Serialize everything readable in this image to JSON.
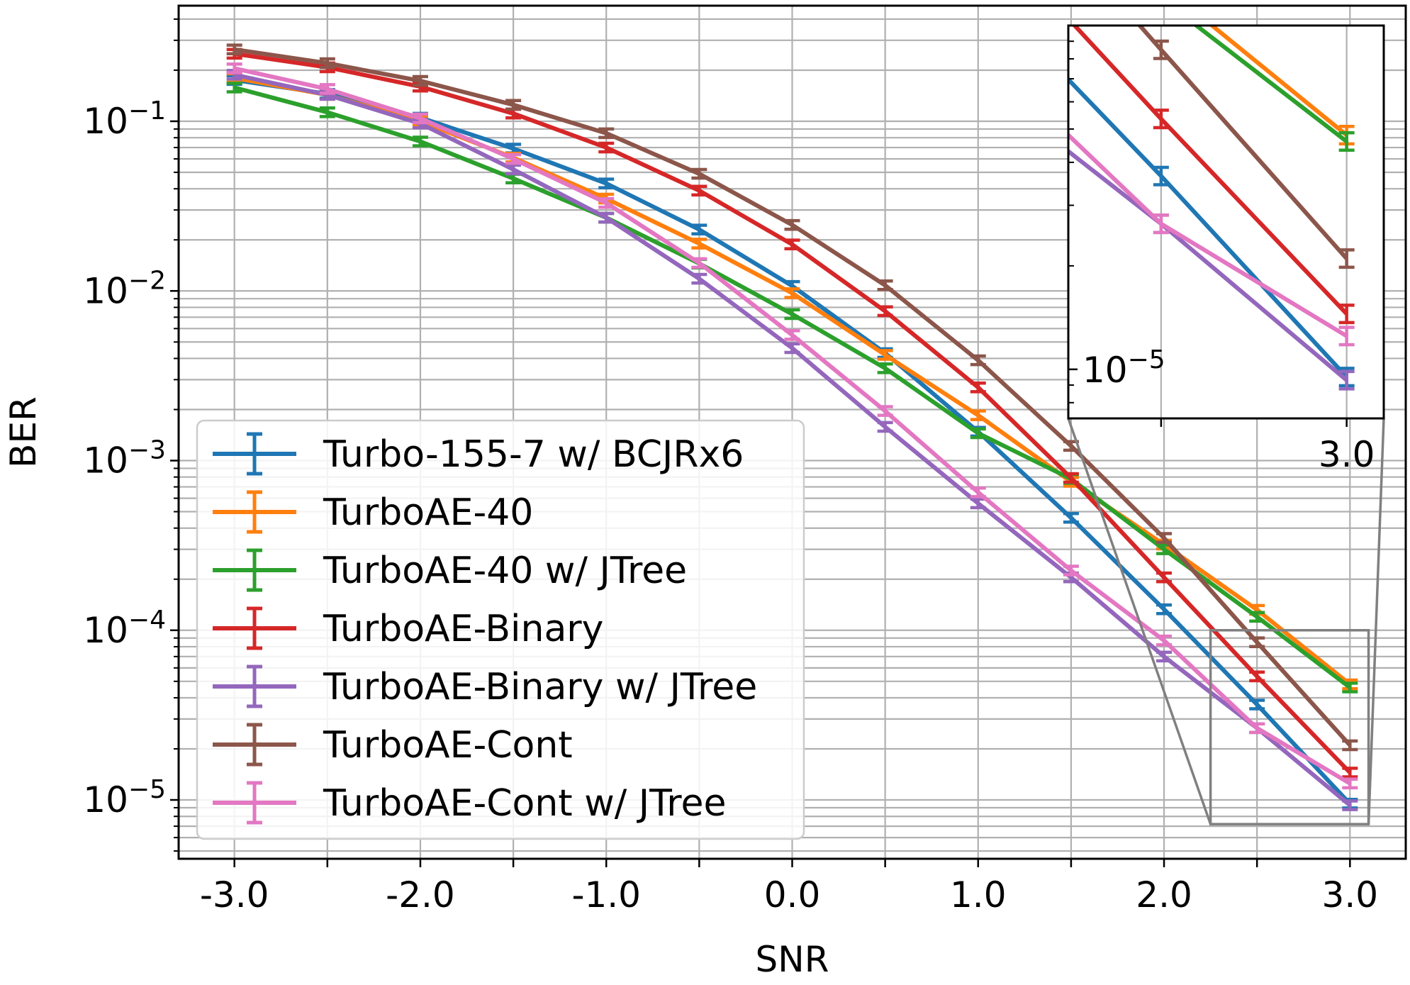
{
  "chart_data": {
    "type": "line",
    "xlabel": "SNR",
    "ylabel": "BER",
    "yscale": "log",
    "xlim": [
      -3.3,
      3.3
    ],
    "ylim": [
      4.5e-06,
      0.48
    ],
    "grid": true,
    "legend_position": "lower-left",
    "x_ticks": [
      "-3.0",
      "-2.0",
      "-1.0",
      "0.0",
      "1.0",
      "2.0",
      "3.0"
    ],
    "y_ticks": [
      {
        "value": 0.1,
        "base": "10",
        "exp": "−1"
      },
      {
        "value": 0.01,
        "base": "10",
        "exp": "−2"
      },
      {
        "value": 0.001,
        "base": "10",
        "exp": "−3"
      },
      {
        "value": 0.0001,
        "base": "10",
        "exp": "−4"
      },
      {
        "value": 1e-05,
        "base": "10",
        "exp": "−5"
      }
    ],
    "x": [
      -3.0,
      -2.5,
      -2.0,
      -1.5,
      -1.0,
      -0.5,
      0.0,
      0.5,
      1.0,
      1.5,
      2.0,
      2.5,
      3.0
    ],
    "series": [
      {
        "name": "Turbo-155-7 w/ BCJRx6",
        "color": "#1f77b4",
        "values": [
          0.175,
          0.145,
          0.105,
          0.069,
          0.043,
          0.023,
          0.0107,
          0.0043,
          0.00148,
          0.00046,
          0.000133,
          3.65e-05,
          9.5e-06
        ]
      },
      {
        "name": "TurboAE-40",
        "color": "#ff7f0e",
        "values": [
          0.18,
          0.143,
          0.1,
          0.061,
          0.035,
          0.019,
          0.0097,
          0.0042,
          0.00185,
          0.00075,
          0.00032,
          0.000132,
          4.8e-05
        ]
      },
      {
        "name": "TurboAE-40 w/ JTree",
        "color": "#2ca02c",
        "values": [
          0.158,
          0.113,
          0.076,
          0.046,
          0.027,
          0.0145,
          0.0073,
          0.0035,
          0.00145,
          0.00078,
          0.0003,
          0.00012,
          4.6e-05
        ]
      },
      {
        "name": "TurboAE-Binary",
        "color": "#d62728",
        "values": [
          0.25,
          0.208,
          0.16,
          0.111,
          0.07,
          0.039,
          0.0188,
          0.0076,
          0.0027,
          0.00079,
          0.000205,
          5.35e-05,
          1.45e-05
        ]
      },
      {
        "name": "TurboAE-Binary w/ JTree",
        "color": "#9467bd",
        "values": [
          0.188,
          0.143,
          0.097,
          0.052,
          0.027,
          0.0118,
          0.0046,
          0.00158,
          0.00056,
          0.000205,
          7e-05,
          2.65e-05,
          9.3e-06
        ]
      },
      {
        "name": "TurboAE-Cont",
        "color": "#8c564b",
        "values": [
          0.265,
          0.22,
          0.173,
          0.125,
          0.085,
          0.049,
          0.0245,
          0.0108,
          0.0039,
          0.00122,
          0.00035,
          8.5e-05,
          2.1e-05
        ]
      },
      {
        "name": "TurboAE-Cont w/ JTree",
        "color": "#e377c2",
        "values": [
          0.205,
          0.155,
          0.104,
          0.06,
          0.033,
          0.0146,
          0.0055,
          0.00196,
          0.00065,
          0.000225,
          8.7e-05,
          2.65e-05,
          1.25e-05
        ]
      }
    ],
    "inset": {
      "xlim": [
        2.25,
        3.1
      ],
      "ylim": [
        7.2e-06,
        0.0001
      ],
      "x_ticks": [
        "3.0"
      ],
      "y_ticks": [
        {
          "value": 1e-05,
          "base": "10",
          "exp": "−5"
        }
      ]
    }
  }
}
